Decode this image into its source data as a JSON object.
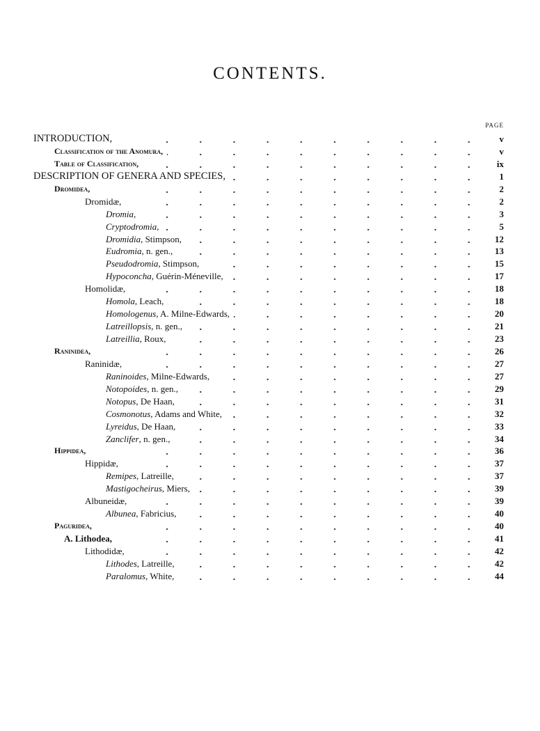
{
  "title": "CONTENTS.",
  "page_header": "PAGE",
  "entries": [
    {
      "level": "l0",
      "italic": "",
      "text": "INTRODUCTION,",
      "page": "v"
    },
    {
      "level": "l1",
      "italic": "",
      "text": "Classification of the Anomura,",
      "page": "v"
    },
    {
      "level": "l1",
      "italic": "",
      "text": "Table of Classification,",
      "page": "ix"
    },
    {
      "level": "l0",
      "italic": "",
      "text": "DESCRIPTION OF GENERA AND SPECIES,",
      "page": "1"
    },
    {
      "level": "l1",
      "italic": "",
      "text": "Dromidea,",
      "page": "2"
    },
    {
      "level": "l2",
      "italic": "",
      "text": "Dromidæ,",
      "page": "2"
    },
    {
      "level": "l3",
      "italic": "Dromia",
      "text": ",",
      "page": "3"
    },
    {
      "level": "l3",
      "italic": "Cryptodromia",
      "text": ",",
      "page": "5"
    },
    {
      "level": "l3",
      "italic": "Dromidia",
      "text": ", Stimpson,",
      "page": "12"
    },
    {
      "level": "l3",
      "italic": "Eudromia",
      "text": ", n. gen.,",
      "page": "13"
    },
    {
      "level": "l3",
      "italic": "Pseudodromia",
      "text": ", Stimpson,",
      "page": "15"
    },
    {
      "level": "l3",
      "italic": "Hypoconcha",
      "text": ", Guérin-Méneville,",
      "page": "17"
    },
    {
      "level": "l2",
      "italic": "",
      "text": "Homolidæ,",
      "page": "18"
    },
    {
      "level": "l3",
      "italic": "Homola",
      "text": ", Leach,",
      "page": "18"
    },
    {
      "level": "l3",
      "italic": "Homologenus",
      "text": ", A. Milne-Edwards,",
      "page": "20"
    },
    {
      "level": "l3",
      "italic": "Latreillopsis",
      "text": ", n. gen.,",
      "page": "21"
    },
    {
      "level": "l3",
      "italic": "Latreillia",
      "text": ", Roux,",
      "page": "23"
    },
    {
      "level": "l1",
      "italic": "",
      "text": "Raninidea,",
      "page": "26"
    },
    {
      "level": "l2",
      "italic": "",
      "text": "Raninidæ,",
      "page": "27"
    },
    {
      "level": "l3",
      "italic": "Raninoides",
      "text": ", Milne-Edwards,",
      "page": "27"
    },
    {
      "level": "l3",
      "italic": "Notopoides",
      "text": ", n. gen.,",
      "page": "29"
    },
    {
      "level": "l3",
      "italic": "Notopus",
      "text": ", De Haan,",
      "page": "31"
    },
    {
      "level": "l3",
      "italic": "Cosmonotus",
      "text": ", Adams and White,",
      "page": "32"
    },
    {
      "level": "l3",
      "italic": "Lyreidus",
      "text": ", De Haan,",
      "page": "33"
    },
    {
      "level": "l3",
      "italic": "Zanclifer",
      "text": ", n. gen.,",
      "page": "34"
    },
    {
      "level": "l1",
      "italic": "",
      "text": "Hippidea,",
      "page": "36"
    },
    {
      "level": "l2",
      "italic": "",
      "text": "Hippidæ,",
      "page": "37"
    },
    {
      "level": "l3",
      "italic": "Remipes",
      "text": ", Latreille,",
      "page": "37"
    },
    {
      "level": "l3",
      "italic": "Mastigocheirus",
      "text": ", Miers,",
      "page": "39"
    },
    {
      "level": "l2",
      "italic": "",
      "text": "Albuneidæ,",
      "page": "39"
    },
    {
      "level": "l3",
      "italic": "Albunea",
      "text": ", Fabricius,",
      "page": "40"
    },
    {
      "level": "l1",
      "italic": "",
      "text": "Paguridea,",
      "page": "40"
    },
    {
      "level": "l1b",
      "italic": "",
      "text": "A. Lithodea,",
      "page": "41"
    },
    {
      "level": "l2",
      "italic": "",
      "text": "Lithodidæ,",
      "page": "42"
    },
    {
      "level": "l3",
      "italic": "Lithodes",
      "text": ", Latreille,",
      "page": "42"
    },
    {
      "level": "l3",
      "italic": "Paralomus",
      "text": ", White,",
      "page": "44"
    }
  ]
}
